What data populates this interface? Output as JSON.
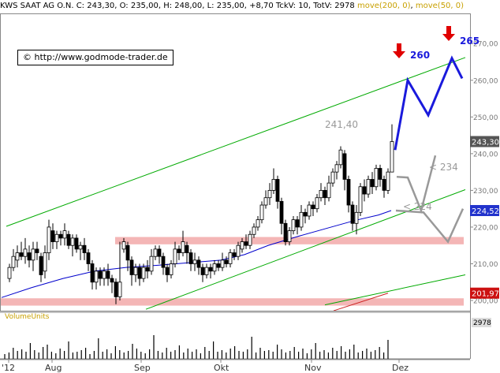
{
  "header": {
    "symbol": "KWS SAAT AG O.N.",
    "close": "C: 243,30",
    "open": "O: 235,00",
    "high": "H: 248,00",
    "low": "L: 235,00",
    "change": "+8,70",
    "tick_vol": "TckV: 10",
    "tot_vol": "LV: 2978",
    "totv": "TotV: 2978",
    "ma200": "move(200, 0)",
    "ma50": "move(50, 0)"
  },
  "copyright": "© http://www.godmode-trader.de",
  "volume_label": "VolumeUnits",
  "colors": {
    "price_line": "#000000",
    "channel": "#00aa00",
    "ma": "#0000cc",
    "forecast_blue": "#1a1adc",
    "forecast_grey": "#999999",
    "zone": "#f4b6b6",
    "arrow": "#e00000"
  },
  "chart_data": {
    "type": "candlestick",
    "ylim": [
      197,
      278
    ],
    "y_ticks": [
      "270,00",
      "260,00",
      "250,00",
      "240,00",
      "230,00",
      "220,00",
      "210,00",
      "200,00"
    ],
    "x_tick_labels": [
      "'12",
      "Aug",
      "Sep",
      "Okt",
      "Nov",
      "Dez"
    ],
    "price_tags": [
      {
        "label": "243,30",
        "value": 243.3,
        "color": "#555555"
      },
      {
        "label": "224,52",
        "value": 224.5,
        "color": "#2233cc"
      },
      {
        "label": "201,97",
        "value": 202.0,
        "color": "#cc1111"
      }
    ],
    "annotations": [
      {
        "text": "241,40",
        "value": 241.4
      },
      {
        "text": "260",
        "value": 260
      },
      {
        "text": "265",
        "value": 265
      },
      {
        "text": "< 234",
        "value": 234
      },
      {
        "text": "< 224",
        "value": 224
      }
    ],
    "volume": {
      "last_label": "2978"
    }
  }
}
